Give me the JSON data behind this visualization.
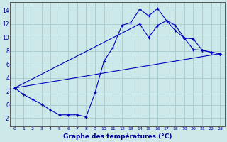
{
  "title": "Graphe des températures (°C)",
  "bg_color": "#cce8e8",
  "grid_color": "#aacece",
  "line_color": "#0000bb",
  "xlim": [
    -0.5,
    23.5
  ],
  "ylim": [
    -3.2,
    15.2
  ],
  "yticks": [
    -2,
    0,
    2,
    4,
    6,
    8,
    10,
    12,
    14
  ],
  "xticks": [
    0,
    1,
    2,
    3,
    4,
    5,
    6,
    7,
    8,
    9,
    10,
    11,
    12,
    13,
    14,
    15,
    16,
    17,
    18,
    19,
    20,
    21,
    22,
    23
  ],
  "line1_x": [
    0,
    1,
    2,
    3,
    4,
    5,
    6,
    7,
    8,
    9,
    10,
    11,
    12,
    13,
    14,
    15,
    16,
    17,
    18,
    19,
    20,
    21,
    22,
    23
  ],
  "line1_y": [
    2.5,
    1.5,
    0.8,
    0.1,
    -0.8,
    -1.5,
    -1.5,
    -1.5,
    -1.8,
    1.8,
    6.5,
    8.5,
    11.8,
    12.2,
    14.2,
    13.2,
    14.3,
    12.5,
    11.8,
    9.9,
    8.2,
    8.1,
    7.8,
    7.6
  ],
  "line2_x": [
    0,
    14,
    15,
    16,
    17,
    18,
    19,
    20,
    21,
    22,
    23
  ],
  "line2_y": [
    2.5,
    12.0,
    10.0,
    11.8,
    12.5,
    11.0,
    9.9,
    9.8,
    8.1,
    7.8,
    7.6
  ],
  "line3_x": [
    0,
    23
  ],
  "line3_y": [
    2.5,
    7.6
  ]
}
